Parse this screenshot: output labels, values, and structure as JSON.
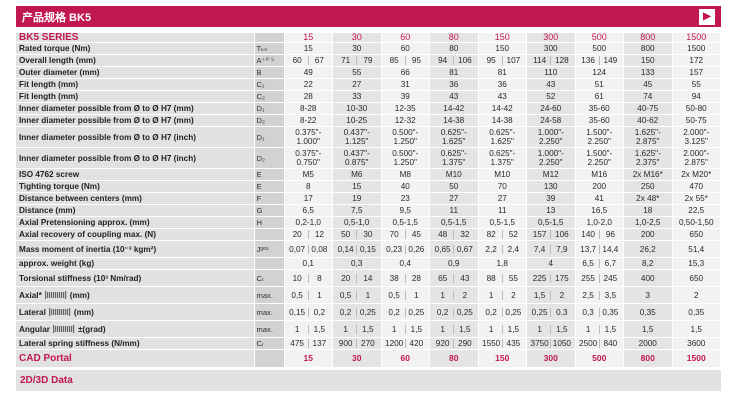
{
  "header": {
    "title": "产品规格 BK5"
  },
  "series_label": "BK5 SERIES",
  "sizes": [
    "15",
    "30",
    "60",
    "80",
    "150",
    "300",
    "500",
    "800",
    "1500"
  ],
  "rows": [
    {
      "label": "Rated torque (Nm)",
      "sym": "Tₖₙ",
      "v": [
        "15",
        "30",
        "60",
        "80",
        "150",
        "300",
        "500",
        "800",
        "1500"
      ]
    },
    {
      "label": "Overall length (mm)",
      "sym": "A⁺⁰˙⁵",
      "v": [
        [
          "60",
          "67"
        ],
        [
          "71",
          "79"
        ],
        [
          "85",
          "95"
        ],
        [
          "94",
          "106"
        ],
        [
          "95",
          "107"
        ],
        [
          "114",
          "128"
        ],
        [
          "136",
          "149"
        ],
        "150",
        "172"
      ]
    },
    {
      "label": "Outer diameter (mm)",
      "sym": "B",
      "v": [
        "49",
        "55",
        "66",
        "81",
        "81",
        "110",
        "124",
        "133",
        "157"
      ]
    },
    {
      "label": "Fit length (mm)",
      "sym": "C₁",
      "v": [
        "22",
        "27",
        "31",
        "36",
        "36",
        "43",
        "51",
        "45",
        "55"
      ]
    },
    {
      "label": "Fit length (mm)",
      "sym": "C₂",
      "v": [
        "28",
        "33",
        "39",
        "43",
        "43",
        "52",
        "61",
        "74",
        "94"
      ]
    },
    {
      "label": "Inner diameter possible from Ø to Ø H7 (mm)",
      "sym": "D₁",
      "v": [
        "8-28",
        "10-30",
        "12-35",
        "14-42",
        "14-42",
        "24-60",
        "35-60",
        "40-75",
        "50-80"
      ]
    },
    {
      "label": "Inner diameter possible from Ø to Ø H7 (mm)",
      "sym": "D₂",
      "v": [
        "8-22",
        "10-25",
        "12-32",
        "14-38",
        "14-38",
        "24-58",
        "35-60",
        "40-62",
        "50-75"
      ]
    },
    {
      "label": "Inner diameter possible from Ø to Ø H7 (inch)",
      "sym": "D₁",
      "tall": true,
      "v": [
        [
          "0.375\"-",
          "1.000\""
        ],
        [
          "0.437\"-",
          "1.125\""
        ],
        [
          "0.500\"-",
          "1.250\""
        ],
        [
          "0.625\"-",
          "1.625\""
        ],
        [
          "0.625\"-",
          "1.625\""
        ],
        [
          "1.000\"-",
          "2.250\""
        ],
        [
          "1.500\"-",
          "2.250\""
        ],
        [
          "1.625\"-",
          "2.875\""
        ],
        [
          "2.000\"-",
          "3.125\""
        ]
      ]
    },
    {
      "label": "Inner diameter possible from Ø to Ø H7 (inch)",
      "sym": "D₂",
      "tall": true,
      "v": [
        [
          "0.375\"-",
          "0.750\""
        ],
        [
          "0.437\"-",
          "0.875\""
        ],
        [
          "0.500\"-",
          "1.250\""
        ],
        [
          "0.625\"-",
          "1.375\""
        ],
        [
          "0.625\"-",
          "1.375\""
        ],
        [
          "1.000\"-",
          "2.250\""
        ],
        [
          "1.500\"-",
          "2.250\""
        ],
        [
          "1.625\"-",
          "2.375\""
        ],
        [
          "2.000\"-",
          "2.875\""
        ]
      ]
    },
    {
      "label": "ISO 4762 screw",
      "sym": "E",
      "v": [
        "M5",
        "M6",
        "M8",
        "M10",
        "M10",
        "M12",
        "M16",
        "2x M16*",
        "2x M20*"
      ]
    },
    {
      "label": "Tighting torque (Nm)",
      "sym": "E",
      "v": [
        "8",
        "15",
        "40",
        "50",
        "70",
        "130",
        "200",
        "250",
        "470"
      ]
    },
    {
      "label": "Distance between centers (mm)",
      "sym": "F",
      "v": [
        "17",
        "19",
        "23",
        "27",
        "27",
        "39",
        "41",
        "2x 48*",
        "2x 55*"
      ]
    },
    {
      "label": "Distance (mm)",
      "sym": "G",
      "v": [
        "6,5",
        "7,5",
        "9,5",
        "11",
        "11",
        "13",
        "16,5",
        "18",
        "22,5"
      ]
    },
    {
      "label": "Axial Pretensioning approx. (mm)",
      "sym": "H",
      "v": [
        "0,2-1,0",
        "0,5-1,0",
        "0,5-1,5",
        "0,5-1,5",
        "0,5-1,5",
        "0,5-1,5",
        "1,0-2,0",
        "1,0-2,5",
        "0,50-1,50"
      ]
    },
    {
      "label": "Axial recovery of coupling max. (N)",
      "sym": "",
      "v": [
        [
          "20",
          "12"
        ],
        [
          "50",
          "30"
        ],
        [
          "70",
          "45"
        ],
        [
          "48",
          "32"
        ],
        [
          "82",
          "52"
        ],
        [
          "157",
          "106"
        ],
        [
          "140",
          "96"
        ],
        "200",
        "650"
      ]
    },
    {
      "label": "Mass moment of inertia (10⁻³ kgm²)",
      "sym": "Jᵍᵉˢ",
      "mid": true,
      "v": [
        [
          "0,07",
          "0,08"
        ],
        [
          "0,14",
          "0,15"
        ],
        [
          "0,23",
          "0,26"
        ],
        [
          "0,65",
          "0,67"
        ],
        [
          "2,2",
          "2,4"
        ],
        [
          "7,4",
          "7,9"
        ],
        [
          "13,7",
          "14,4"
        ],
        "26,2",
        "51,4"
      ]
    },
    {
      "label": "approx. weight (kg)",
      "sym": "",
      "v": [
        "0,1",
        "0,3",
        "0,4",
        "0,9",
        "1,8",
        "4",
        [
          "6,5",
          "6,7"
        ],
        "8,2",
        "15,3"
      ]
    },
    {
      "label": "Torsional stiffness (10³ Nm/rad)",
      "sym": "Cₜ",
      "mid": true,
      "v": [
        [
          "10",
          "8"
        ],
        [
          "20",
          "14"
        ],
        [
          "38",
          "28"
        ],
        [
          "65",
          "43"
        ],
        [
          "88",
          "55"
        ],
        [
          "225",
          "175"
        ],
        [
          "255",
          "245"
        ],
        "400",
        "650"
      ]
    },
    {
      "label": "Axial*",
      "suffix": "(mm)",
      "sym": "max.",
      "coupling": true,
      "mid": true,
      "v": [
        [
          "0,5",
          "1"
        ],
        [
          "0,5",
          "1"
        ],
        [
          "0,5",
          "1"
        ],
        [
          "1",
          "2"
        ],
        [
          "1",
          "2"
        ],
        [
          "1,5",
          "2"
        ],
        [
          "2,5",
          "3,5"
        ],
        "3",
        "2"
      ]
    },
    {
      "label": "Lateral",
      "suffix": "(mm)",
      "sym": "max.",
      "coupling": true,
      "mid": true,
      "v": [
        [
          "0,15",
          "0,2"
        ],
        [
          "0,2",
          "0,25"
        ],
        [
          "0,2",
          "0,25"
        ],
        [
          "0,2",
          "0,25"
        ],
        [
          "0,2",
          "0,25"
        ],
        [
          "0,25",
          "0,3"
        ],
        [
          "0,3",
          "0,35"
        ],
        "0,35",
        "0,35"
      ]
    },
    {
      "label": "Angular",
      "suffix": "±(grad)",
      "sym": "max.",
      "coupling": true,
      "mid": true,
      "v": [
        [
          "1",
          "1,5"
        ],
        [
          "1",
          "1,5"
        ],
        [
          "1",
          "1,5"
        ],
        [
          "1",
          "1,5"
        ],
        [
          "1",
          "1,5"
        ],
        [
          "1",
          "1,5"
        ],
        [
          "1",
          "1,5"
        ],
        "1,5",
        "1,5"
      ]
    },
    {
      "label": "Lateral spring stiffness (N/mm)",
      "sym": "Cᵣ",
      "v": [
        [
          "475",
          "137"
        ],
        [
          "900",
          "270"
        ],
        [
          "1200",
          "420"
        ],
        [
          "920",
          "290"
        ],
        [
          "1550",
          "435"
        ],
        [
          "3750",
          "1050"
        ],
        [
          "2500",
          "840"
        ],
        "2000",
        "3600"
      ]
    }
  ],
  "cad_portal": {
    "label": "CAD Portal",
    "values": [
      "15",
      "30",
      "60",
      "80",
      "150",
      "300",
      "500",
      "800",
      "1500"
    ]
  },
  "download": {
    "label": "2D/3D Data"
  },
  "colors": {
    "accent": "#c0184e",
    "label_bg": "#e1e1e1",
    "cell_bg": "#f2f2f2"
  }
}
